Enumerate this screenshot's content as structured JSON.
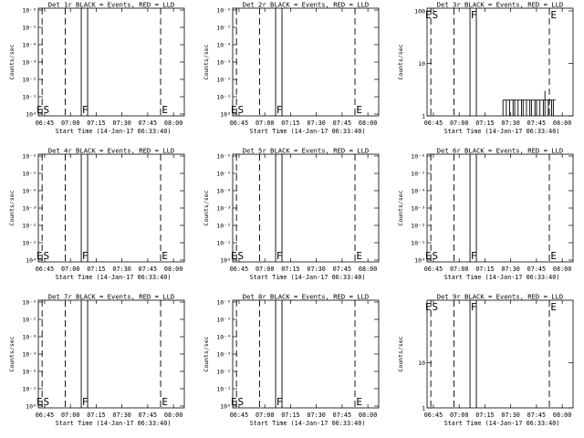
{
  "chart_data": [
    {
      "type": "line",
      "title": "Det 1r BLACK = Events, RED = LLD",
      "xlabel": "Start Time (14-Jan-17 06:33:40)",
      "ylabel": "Counts/sec",
      "yscale": "log",
      "y_ticks": [
        "10⁰",
        "10⁻¹",
        "10⁻²",
        "10⁻³",
        "10⁻⁴",
        "10⁻⁵",
        "10⁻⁶"
      ],
      "x_ticks": [
        "06:45",
        "07:00",
        "07:15",
        "07:30",
        "07:45",
        "08:00"
      ],
      "annotations": [
        "E",
        "S",
        "F",
        "E"
      ],
      "series": []
    },
    {
      "type": "line",
      "title": "Det 2r BLACK = Events, RED = LLD",
      "xlabel": "Start Time (14-Jan-17 06:33:40)",
      "ylabel": "Counts/sec",
      "yscale": "log",
      "y_ticks": [
        "10⁰",
        "10⁻¹",
        "10⁻²",
        "10⁻³",
        "10⁻⁴",
        "10⁻⁵",
        "10⁻⁶"
      ],
      "x_ticks": [
        "06:45",
        "07:00",
        "07:15",
        "07:30",
        "07:45",
        "08:00"
      ],
      "annotations": [
        "E",
        "S",
        "F",
        "E"
      ],
      "series": []
    },
    {
      "type": "line",
      "title": "Det 3r BLACK = Events, RED = LLD",
      "xlabel": "Start Time (14-Jan-17 06:33:40)",
      "ylabel": "Counts/sec",
      "yscale": "log",
      "y_ticks": [
        "1",
        "10",
        "100"
      ],
      "x_ticks": [
        "06:45",
        "07:00",
        "07:15",
        "07:30",
        "07:45",
        "08:00"
      ],
      "annotations": [
        "E",
        "S",
        "F",
        "E"
      ],
      "series": [
        {
          "color": "#000000",
          "x_minutes": [
            34,
            35,
            36,
            37,
            38,
            39,
            40,
            41,
            42,
            43,
            44,
            45,
            46,
            47,
            48,
            49,
            50,
            51,
            52,
            53,
            54,
            55,
            56,
            57,
            58,
            59,
            60,
            61,
            62,
            63,
            64,
            65
          ],
          "values": [
            2,
            1,
            2,
            1,
            2,
            1,
            2,
            2,
            1,
            2,
            1,
            2,
            2,
            1,
            2,
            1,
            2,
            2,
            1,
            2,
            2,
            1,
            2,
            1,
            2,
            3,
            1,
            2,
            1,
            2,
            2,
            1
          ]
        }
      ]
    },
    {
      "type": "line",
      "title": "Det 4r BLACK = Events, RED = LLD",
      "xlabel": "Start Time (14-Jan-17 06:33:40)",
      "ylabel": "Counts/sec",
      "yscale": "log",
      "y_ticks": [
        "10⁰",
        "10⁻¹",
        "10⁻²",
        "10⁻³",
        "10⁻⁴",
        "10⁻⁵",
        "10⁻⁶"
      ],
      "x_ticks": [
        "06:45",
        "07:00",
        "07:15",
        "07:30",
        "07:45",
        "08:00"
      ],
      "annotations": [
        "E",
        "S",
        "F",
        "E"
      ],
      "series": []
    },
    {
      "type": "line",
      "title": "Det 5r BLACK = Events, RED = LLD",
      "xlabel": "Start Time (14-Jan-17 06:33:40)",
      "ylabel": "Counts/sec",
      "yscale": "log",
      "y_ticks": [
        "10⁰",
        "10⁻¹",
        "10⁻²",
        "10⁻³",
        "10⁻⁴",
        "10⁻⁵",
        "10⁻⁶"
      ],
      "x_ticks": [
        "06:45",
        "07:00",
        "07:15",
        "07:30",
        "07:45",
        "08:00"
      ],
      "annotations": [
        "E",
        "S",
        "F",
        "E"
      ],
      "series": []
    },
    {
      "type": "line",
      "title": "Det 6r BLACK = Events, RED = LLD",
      "xlabel": "Start Time (14-Jan-17 06:33:40)",
      "ylabel": "Counts/sec",
      "yscale": "log",
      "y_ticks": [
        "10⁰",
        "10⁻¹",
        "10⁻²",
        "10⁻³",
        "10⁻⁴",
        "10⁻⁵",
        "10⁻⁶"
      ],
      "x_ticks": [
        "06:45",
        "07:00",
        "07:15",
        "07:30",
        "07:45",
        "08:00"
      ],
      "annotations": [
        "E",
        "S",
        "F",
        "E"
      ],
      "series": []
    },
    {
      "type": "line",
      "title": "Det 7r BLACK = Events, RED = LLD",
      "xlabel": "Start Time (14-Jan-17 06:33:40)",
      "ylabel": "Counts/sec",
      "yscale": "log",
      "y_ticks": [
        "10⁰",
        "10⁻¹",
        "10⁻²",
        "10⁻³",
        "10⁻⁴",
        "10⁻⁵",
        "10⁻⁶"
      ],
      "x_ticks": [
        "06:45",
        "07:00",
        "07:15",
        "07:30",
        "07:45",
        "08:00"
      ],
      "annotations": [
        "E",
        "S",
        "F",
        "E"
      ],
      "series": []
    },
    {
      "type": "line",
      "title": "Det 8r BLACK = Events, RED = LLD",
      "xlabel": "Start Time (14-Jan-17 06:33:40)",
      "ylabel": "Counts/sec",
      "yscale": "log",
      "y_ticks": [
        "10⁰",
        "10⁻¹",
        "10⁻²",
        "10⁻³",
        "10⁻⁴",
        "10⁻⁵",
        "10⁻⁶"
      ],
      "x_ticks": [
        "06:45",
        "07:00",
        "07:15",
        "07:30",
        "07:45",
        "08:00"
      ],
      "annotations": [
        "E",
        "S",
        "F",
        "E"
      ],
      "series": []
    },
    {
      "type": "line",
      "title": "Det 9r BLACK = Events, RED = LLD",
      "xlabel": "Start Time (14-Jan-17 06:33:40)",
      "ylabel": "Counts/sec",
      "yscale": "log",
      "y_ticks": [
        "1",
        "10"
      ],
      "x_ticks": [
        "06:45",
        "07:00",
        "07:15",
        "07:30",
        "07:45",
        "08:00"
      ],
      "annotations": [
        "E",
        "S",
        "F",
        "E"
      ],
      "series": []
    }
  ]
}
